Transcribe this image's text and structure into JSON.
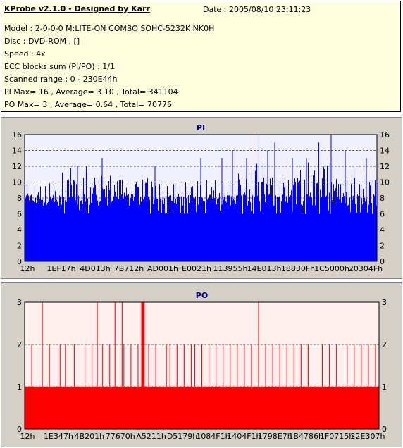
{
  "header": {
    "title": "KProbe v2.1.0 - Designed by Karr",
    "date": "Date : 2005/08/10 23:11:23",
    "lines": [
      "Model : 2-0-0-0 M:LITE-ON COMBO SOHC-5232K NK0H",
      "Disc : DVD-ROM ,  []",
      "Speed : 4x",
      "ECC blocks sum (PI/PO) : 1/1",
      "Scanned range : 0 - 230E44h",
      "PI Max= 16 , Average= 3.10 , Total= 341104",
      "PO Max= 3 , Average= 0.64 , Total= 70776"
    ]
  },
  "chart_data": [
    {
      "type": "bar",
      "title": "PI",
      "ylim": [
        0,
        16
      ],
      "yticks": [
        0,
        2,
        4,
        6,
        8,
        10,
        12,
        14,
        16
      ],
      "x_tick_labels": [
        "12h",
        "1EF17h",
        "4D013h",
        "7B712h",
        "AD001h",
        "E0021h",
        "113955h",
        "14E013h",
        "18830Fh",
        "1C5000h",
        "20304Fh"
      ],
      "grid": true,
      "colors": {
        "bars": "#0000ff",
        "plot_bg": "#f0f0ff",
        "title": "#000080"
      },
      "summary": {
        "max": 16,
        "average": 3.1,
        "total": 341104
      },
      "spikes": [
        {
          "x": 0.15,
          "y": 12
        },
        {
          "x": 0.22,
          "y": 13
        },
        {
          "x": 0.37,
          "y": 12
        },
        {
          "x": 0.5,
          "y": 13
        },
        {
          "x": 0.56,
          "y": 13
        },
        {
          "x": 0.59,
          "y": 14
        },
        {
          "x": 0.63,
          "y": 13
        },
        {
          "x": 0.665,
          "y": 16
        },
        {
          "x": 0.69,
          "y": 14
        },
        {
          "x": 0.71,
          "y": 15
        },
        {
          "x": 0.76,
          "y": 13
        },
        {
          "x": 0.8,
          "y": 13
        },
        {
          "x": 0.835,
          "y": 15
        },
        {
          "x": 0.87,
          "y": 16
        },
        {
          "x": 0.91,
          "y": 14
        },
        {
          "x": 0.97,
          "y": 13
        }
      ]
    },
    {
      "type": "bar",
      "title": "PO",
      "ylim": [
        0,
        3
      ],
      "yticks": [
        0,
        1,
        2,
        3
      ],
      "x_tick_labels": [
        "12h",
        "1E347h",
        "4B201h",
        "77670h",
        "A5211h",
        "D5179h",
        "1084F1h",
        "1404F1h",
        "1798E7h",
        "1B4786h",
        "1F0715h",
        "22E307h"
      ],
      "grid": true,
      "colors": {
        "bars": "#ff0000",
        "plot_bg": "#fff0f0",
        "title": "#000080"
      },
      "summary": {
        "max": 3,
        "average": 0.64,
        "total": 70776
      },
      "baseline": 1,
      "spikes_to_3": [
        0.05,
        0.205,
        0.255,
        0.275,
        0.33,
        0.335,
        0.66
      ],
      "spikes_to_2": [
        0.02,
        0.07,
        0.1,
        0.115,
        0.14,
        0.17,
        0.19,
        0.22,
        0.24,
        0.28,
        0.3,
        0.32,
        0.35,
        0.37,
        0.4,
        0.41,
        0.43,
        0.45,
        0.47,
        0.48,
        0.5,
        0.52,
        0.54,
        0.56,
        0.58,
        0.6,
        0.62,
        0.64,
        0.68,
        0.7,
        0.72,
        0.74,
        0.76,
        0.78,
        0.8,
        0.84,
        0.86,
        0.88,
        0.91,
        0.93,
        0.95,
        0.97,
        0.99
      ]
    }
  ]
}
